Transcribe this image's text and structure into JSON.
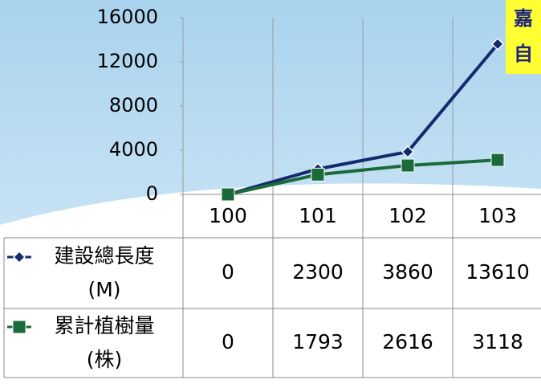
{
  "chart_data": {
    "type": "line",
    "categories": [
      "100",
      "101",
      "102",
      "103"
    ],
    "series": [
      {
        "name": "建設總長度(M)",
        "color": "#142a6e",
        "marker": "diamond",
        "values": [
          0,
          2300,
          3860,
          13610
        ]
      },
      {
        "name": "累計植樹量(株)",
        "color": "#1b6a3a",
        "marker": "square",
        "values": [
          0,
          1793,
          2616,
          3118
        ]
      }
    ],
    "ylim": [
      0,
      16000
    ],
    "yticks": [
      0,
      4000,
      8000,
      12000,
      16000
    ],
    "annotations": [
      "嘉",
      "自"
    ]
  }
}
